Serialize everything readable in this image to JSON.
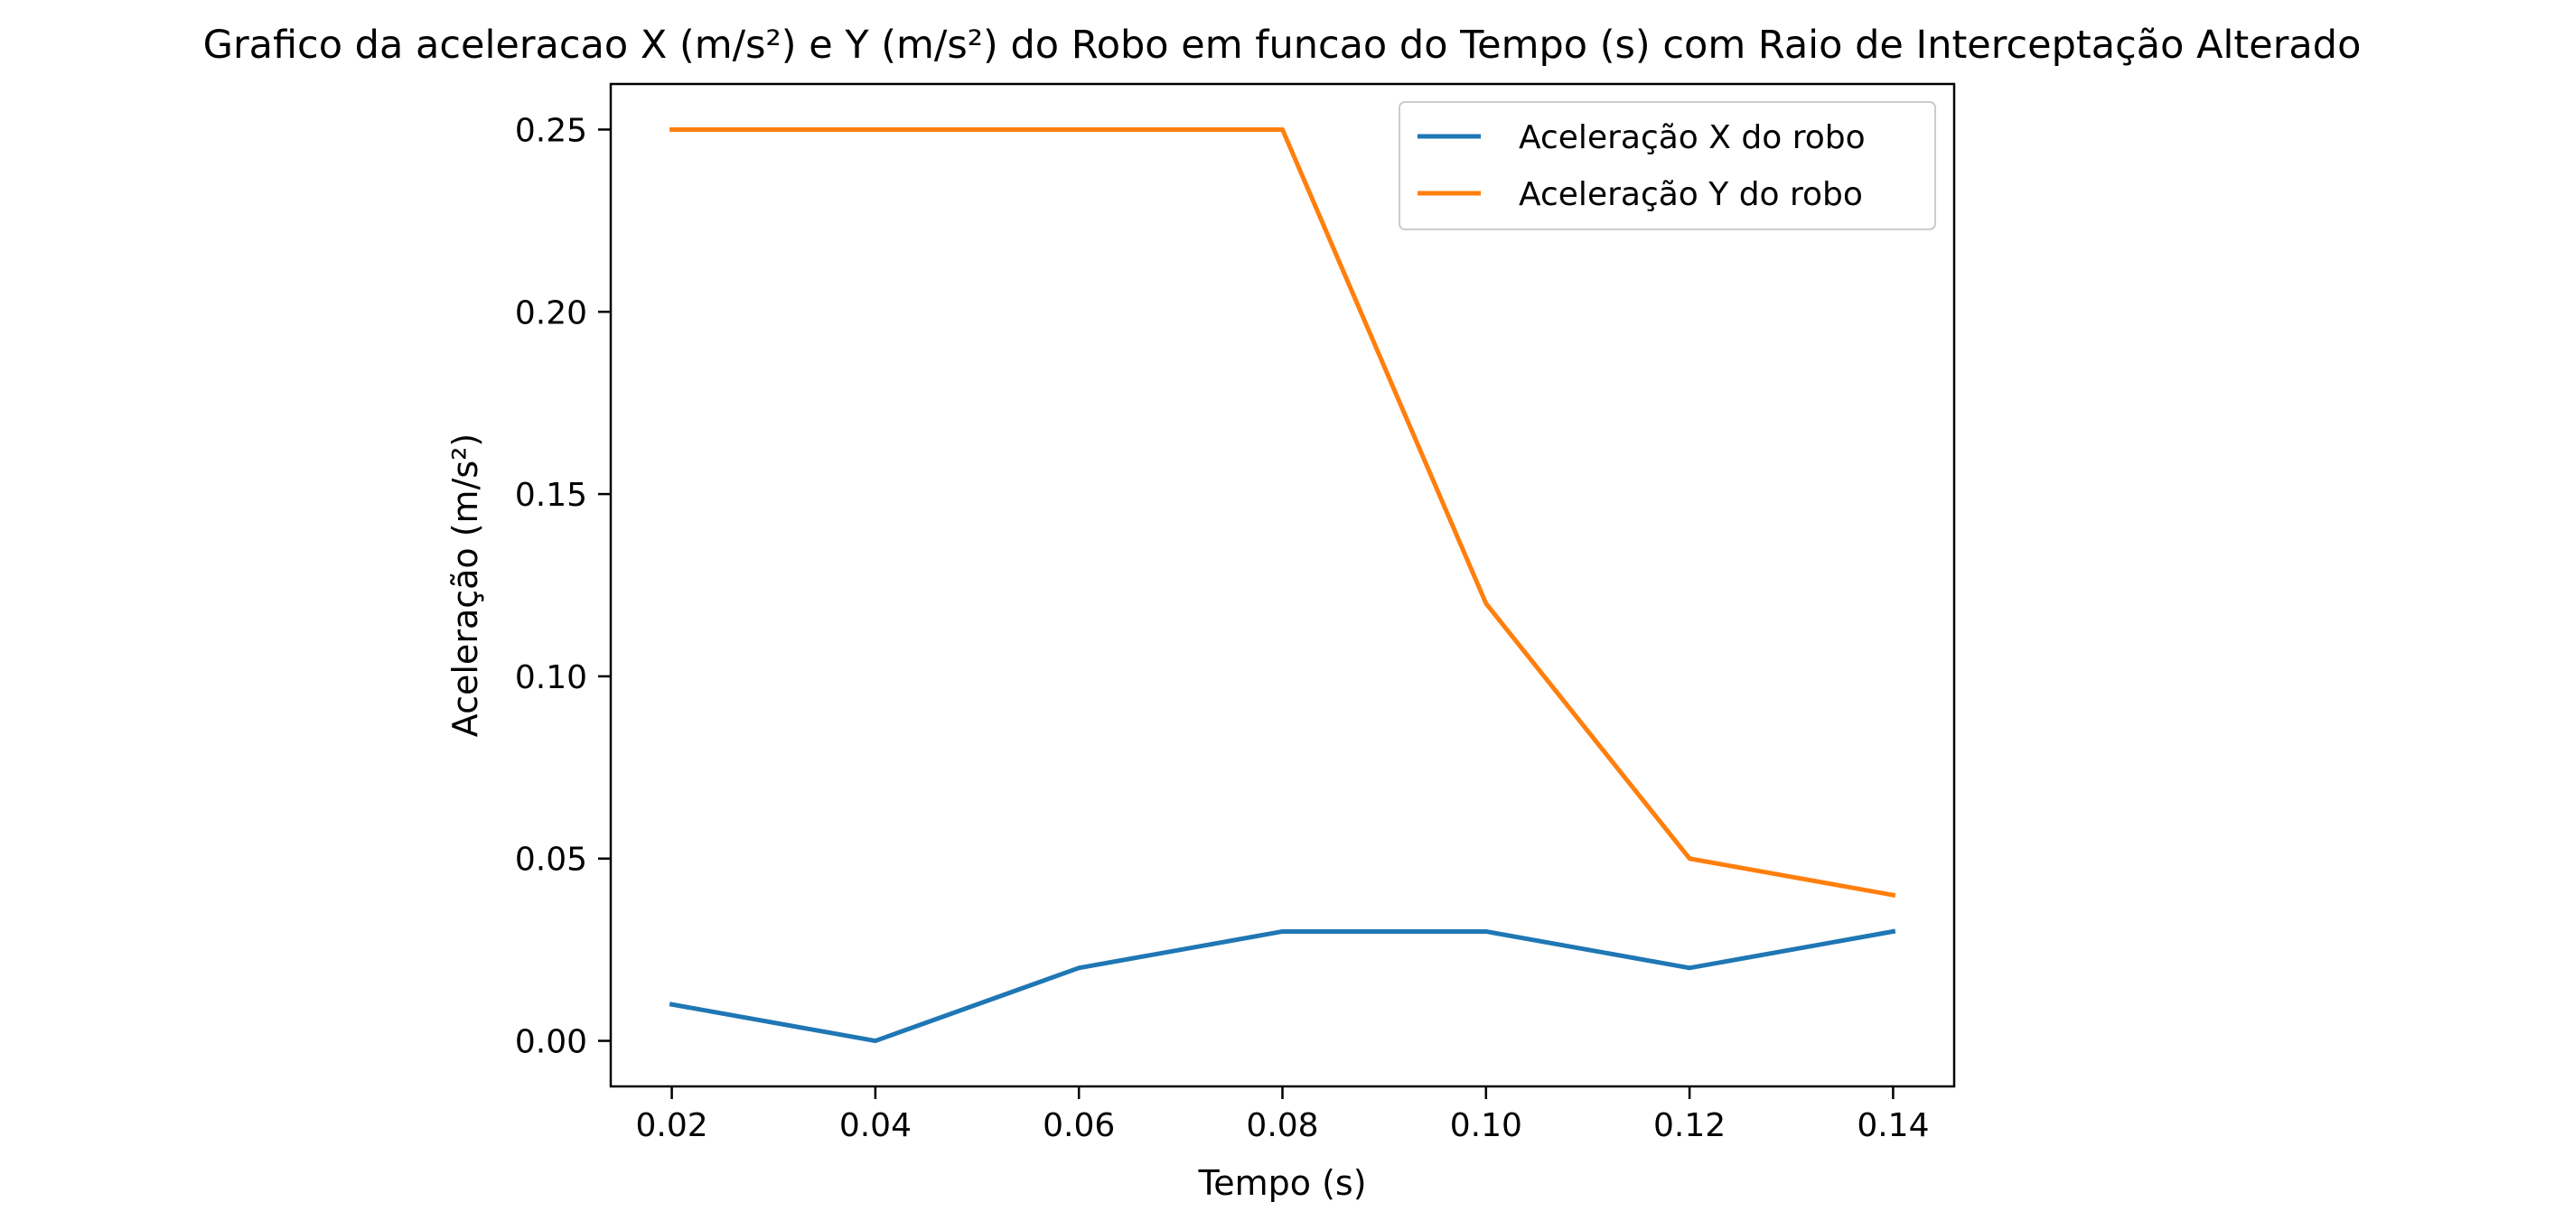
{
  "chart_data": {
    "type": "line",
    "title": "Grafico da aceleracao X (m/s²) e Y (m/s²) do Robo em funcao do Tempo (s) com Raio de Interceptação Alterado",
    "xlabel": "Tempo (s)",
    "ylabel": "Aceleração (m/s²)",
    "x": [
      0.02,
      0.04,
      0.06,
      0.08,
      0.1,
      0.12,
      0.14
    ],
    "xlim": [
      0.014,
      0.146
    ],
    "ylim": [
      -0.0125,
      0.2625
    ],
    "xticks": [
      0.02,
      0.04,
      0.06,
      0.08,
      0.1,
      0.12,
      0.14
    ],
    "xtick_labels": [
      "0.02",
      "0.04",
      "0.06",
      "0.08",
      "0.10",
      "0.12",
      "0.14"
    ],
    "yticks": [
      0.0,
      0.05,
      0.1,
      0.15,
      0.2,
      0.25
    ],
    "ytick_labels": [
      "0.00",
      "0.05",
      "0.10",
      "0.15",
      "0.20",
      "0.25"
    ],
    "grid": false,
    "legend_position": "top-right",
    "series": [
      {
        "name": "Aceleração X do robo",
        "values": [
          0.01,
          0.0,
          0.02,
          0.03,
          0.03,
          0.02,
          0.03
        ],
        "color": "#1f77b4"
      },
      {
        "name": "Aceleração Y do robo",
        "values": [
          0.25,
          0.25,
          0.25,
          0.25,
          0.12,
          0.05,
          0.04
        ],
        "color": "#ff7f0e"
      }
    ]
  }
}
